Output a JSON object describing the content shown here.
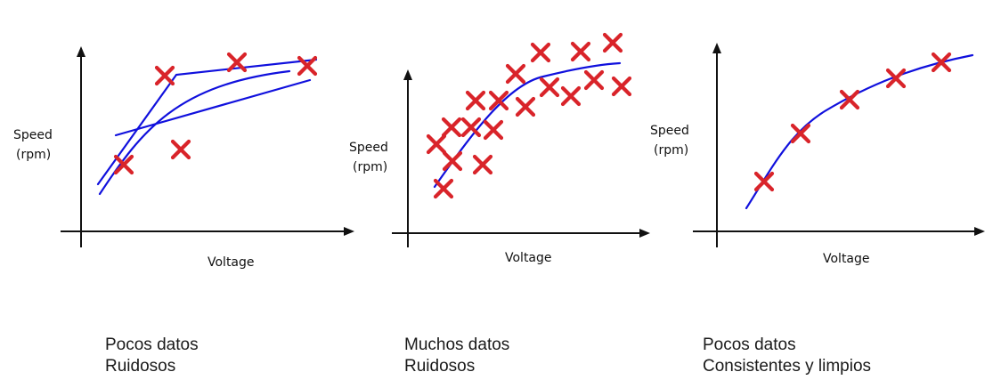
{
  "colors": {
    "curve": "#1010dd",
    "marker": "#d9242a",
    "axis": "#111111"
  },
  "panels": [
    {
      "ylabel_line1": "Speed",
      "ylabel_line2": "(rpm)",
      "xlabel": "Voltage",
      "caption_line1": "Pocos datos",
      "caption_line2": "Ruidosos"
    },
    {
      "ylabel_line1": "Speed",
      "ylabel_line2": "(rpm)",
      "xlabel": "Voltage",
      "caption_line1": "Muchos datos",
      "caption_line2": "Ruidosos"
    },
    {
      "ylabel_line1": "Speed",
      "ylabel_line2": "(rpm)",
      "xlabel": "Voltage",
      "caption_line1": "Pocos datos",
      "caption_line2": "Consistentes y limpios"
    }
  ]
}
